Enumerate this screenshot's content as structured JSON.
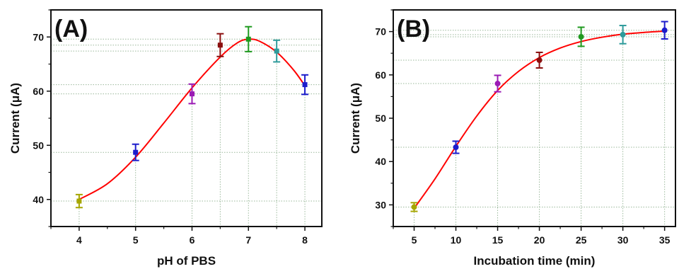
{
  "chart_data": [
    {
      "type": "scatter",
      "panel_label": "(A)",
      "xlabel": "pH of PBS",
      "ylabel": "Current (μA)",
      "xlim": [
        3.5,
        8.3
      ],
      "ylim": [
        35,
        75
      ],
      "xticks": [
        4,
        5,
        6,
        7,
        8
      ],
      "yticks": [
        40,
        50,
        60,
        70
      ],
      "marker": "square",
      "x": [
        4,
        5,
        6,
        6.5,
        7,
        7.5,
        8
      ],
      "y": [
        39.7,
        48.7,
        59.5,
        68.5,
        69.6,
        67.4,
        61.2
      ],
      "errors": [
        1.2,
        1.5,
        1.8,
        2.1,
        2.3,
        2.0,
        1.8
      ],
      "point_colors": [
        "#a6a600",
        "#1c1ccc",
        "#9b1bb5",
        "#8b0f0f",
        "#1f9a1f",
        "#2e9b9b",
        "#1c1ccc"
      ],
      "fit_curve_color": "#ff0000",
      "fit_curve": [
        [
          4,
          40.0
        ],
        [
          4.5,
          42.9
        ],
        [
          5,
          47.8
        ],
        [
          5.5,
          54.1
        ],
        [
          6,
          60.6
        ],
        [
          6.5,
          66.3
        ],
        [
          6.8,
          68.9
        ],
        [
          7,
          69.6
        ],
        [
          7.2,
          69.2
        ],
        [
          7.5,
          67.2
        ],
        [
          7.8,
          63.9
        ],
        [
          8,
          61.0
        ]
      ],
      "guide_lines": true,
      "guide_color": "#9ab89a"
    },
    {
      "type": "scatter",
      "panel_label": "(B)",
      "xlabel": "Incubation time (min)",
      "ylabel": "Current (μA)",
      "xlim": [
        2.5,
        36.3
      ],
      "ylim": [
        25,
        75
      ],
      "xticks": [
        5,
        10,
        15,
        20,
        25,
        30,
        35
      ],
      "yticks": [
        30,
        40,
        50,
        60,
        70
      ],
      "marker": "circle",
      "x": [
        5,
        10,
        15,
        20,
        25,
        30,
        35
      ],
      "y": [
        29.5,
        43.3,
        58.0,
        63.4,
        68.8,
        69.3,
        70.3
      ],
      "errors": [
        1.0,
        1.4,
        1.9,
        1.8,
        2.2,
        2.1,
        2.0
      ],
      "point_colors": [
        "#a6a600",
        "#1c1ccc",
        "#9b1bb5",
        "#8b0f0f",
        "#1f9a1f",
        "#2e9b9b",
        "#1c1ccc"
      ],
      "fit_curve_color": "#ff0000",
      "fit_curve": [
        [
          5,
          29.2
        ],
        [
          7.5,
          36.0
        ],
        [
          10,
          43.5
        ],
        [
          12.5,
          50.5
        ],
        [
          15,
          56.4
        ],
        [
          17.5,
          60.8
        ],
        [
          20,
          64.0
        ],
        [
          22.5,
          66.2
        ],
        [
          25,
          67.7
        ],
        [
          27.5,
          68.7
        ],
        [
          30,
          69.4
        ],
        [
          32.5,
          69.8
        ],
        [
          35,
          70.1
        ]
      ],
      "guide_lines": true,
      "guide_color": "#9ab89a"
    }
  ]
}
